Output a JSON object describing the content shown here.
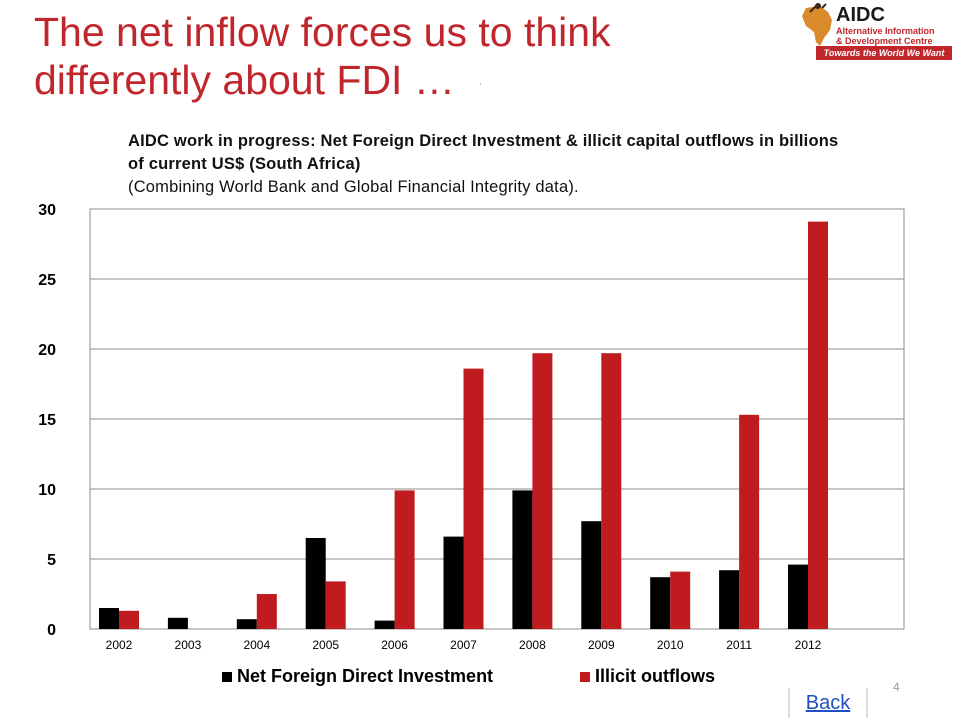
{
  "slide": {
    "title_line1": "The net inflow forces us to think",
    "title_line2": "differently about FDI …",
    "page_number": "4",
    "back_label": "Back"
  },
  "logo": {
    "name": "AIDC",
    "line1": "Alternative Information",
    "line2": "& Development Centre",
    "tagline": "Towards the World We Want"
  },
  "colors": {
    "title": "#c0272d",
    "fdi": "#000000",
    "illicit": "#c01c20",
    "grid": "#8c8c8c"
  },
  "chart_data": {
    "type": "bar",
    "title": "AIDC work in progress: Net Foreign Direct Investment & illicit capital outflows in billions of current US$ (South Africa)",
    "subtitle": "(Combining World Bank and Global Financial Integrity data).",
    "categories": [
      "2002",
      "2003",
      "2004",
      "2005",
      "2006",
      "2007",
      "2008",
      "2009",
      "2010",
      "2011",
      "2012"
    ],
    "series": [
      {
        "name": "Net Foreign Direct Investment",
        "values": [
          1.5,
          0.8,
          0.7,
          6.5,
          0.6,
          6.6,
          9.9,
          7.7,
          3.7,
          4.2,
          4.6
        ]
      },
      {
        "name": "Illicit outflows",
        "values": [
          1.3,
          0.0,
          2.5,
          3.4,
          9.9,
          18.6,
          19.7,
          19.7,
          4.1,
          15.3,
          29.1
        ]
      }
    ],
    "ylim": [
      0,
      30
    ],
    "yticks": [
      "0",
      "5",
      "10",
      "15",
      "20",
      "25",
      "30"
    ],
    "grid": true,
    "legend": "bottom"
  }
}
